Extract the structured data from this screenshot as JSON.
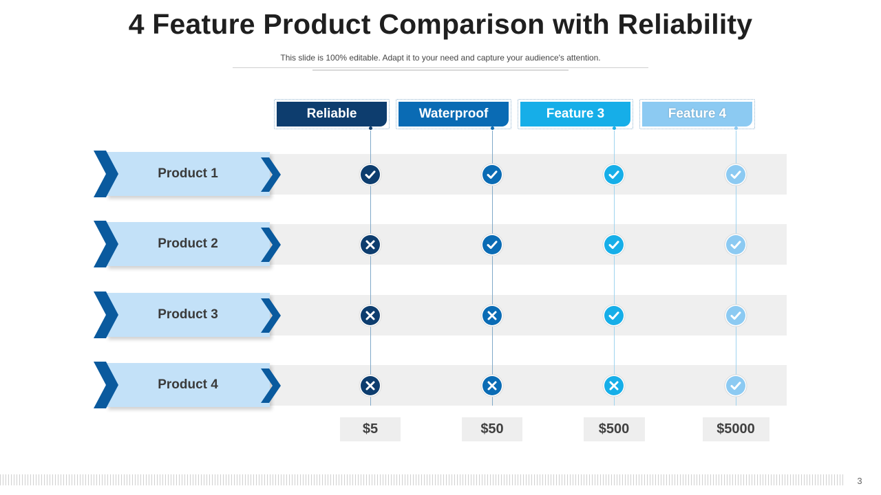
{
  "title": "4 Feature Product Comparison with Reliability",
  "subtitle": "This slide is 100% editable. Adapt it to your need and capture your audience's attention.",
  "features": [
    {
      "label": "Reliable",
      "color": "#0d3d6e"
    },
    {
      "label": "Waterproof",
      "color": "#0a6bb4"
    },
    {
      "label": "Feature 3",
      "color": "#16aee8"
    },
    {
      "label": "Feature 4",
      "color": "#8ccaf2"
    }
  ],
  "products": [
    {
      "label": "Product 1",
      "status": [
        "check",
        "check",
        "check",
        "check"
      ]
    },
    {
      "label": "Product 2",
      "status": [
        "cross",
        "check",
        "check",
        "check"
      ]
    },
    {
      "label": "Product 3",
      "status": [
        "cross",
        "cross",
        "check",
        "check"
      ]
    },
    {
      "label": "Product 4",
      "status": [
        "cross",
        "cross",
        "cross",
        "check"
      ]
    }
  ],
  "prices": [
    "$5",
    "$50",
    "$500",
    "$5000"
  ],
  "page_number": "3",
  "icons": {
    "check": "check-circle-icon",
    "cross": "cross-circle-icon",
    "arrow": "chevron-right-icon"
  }
}
